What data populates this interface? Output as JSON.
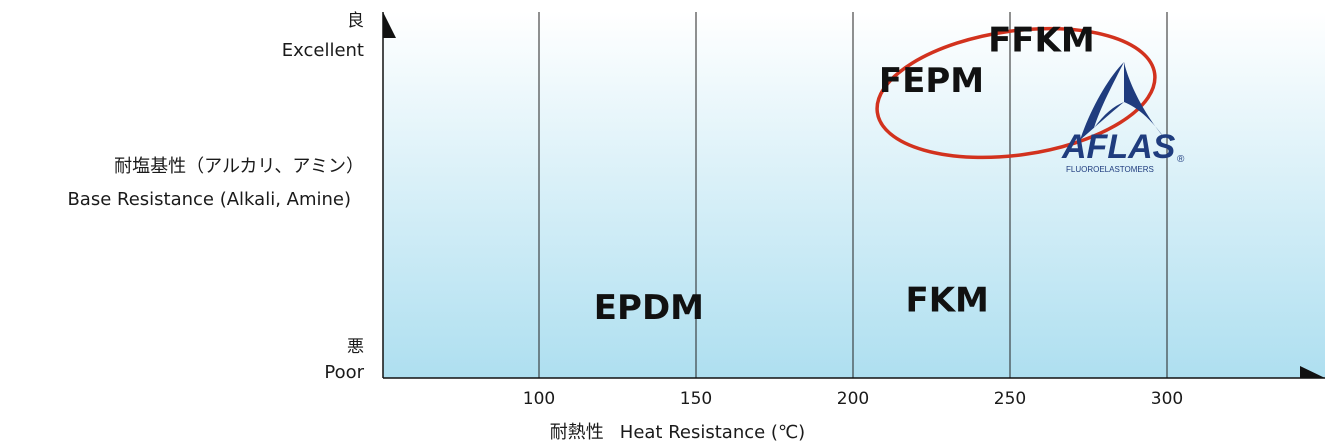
{
  "chart_data": {
    "type": "scatter",
    "title": "",
    "y_axis": {
      "title_jp": "耐塩基性（アルカリ、アミン）",
      "title_en": "Base Resistance (Alkali, Amine)",
      "top_jp": "良",
      "top_en": "Excellent",
      "bottom_jp": "悪",
      "bottom_en": "Poor"
    },
    "x_axis": {
      "label_jp": "耐熱性",
      "label_en": "Heat Resistance (℃)",
      "xlim": [
        50,
        350
      ],
      "ticks": [
        100,
        150,
        200,
        250,
        300
      ]
    },
    "grid": "vertical",
    "materials": [
      {
        "name": "EPDM",
        "heat_resistance": 135,
        "base_resistance": 0.2
      },
      {
        "name": "FKM",
        "heat_resistance": 230,
        "base_resistance": 0.22
      },
      {
        "name": "FEPM",
        "heat_resistance": 225,
        "base_resistance": 0.82
      },
      {
        "name": "FFKM",
        "heat_resistance": 260,
        "base_resistance": 0.93
      }
    ],
    "highlight": {
      "label": "FEPM + FFKM",
      "color": "#d2321e"
    },
    "logo": {
      "text": "AFLAS",
      "subtext": "FLUOROELASTOMERS",
      "mark": "®",
      "color": "#1f3c7e"
    }
  }
}
